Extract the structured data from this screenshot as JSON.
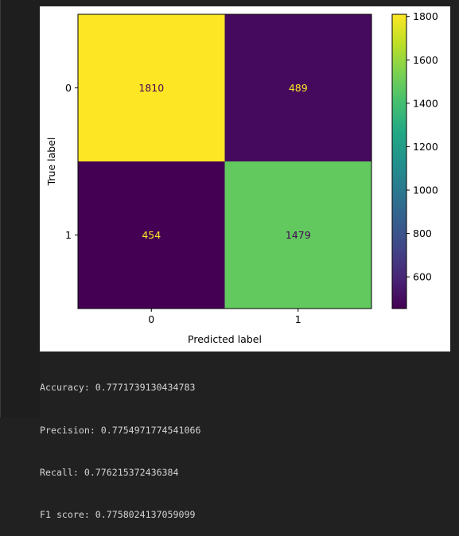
{
  "chart_data": {
    "type": "heatmap",
    "title": "",
    "xlabel": "Predicted label",
    "ylabel": "True label",
    "x_categories": [
      "0",
      "1"
    ],
    "y_categories": [
      "0",
      "1"
    ],
    "values": [
      [
        1810,
        489
      ],
      [
        454,
        1479
      ]
    ],
    "colormap": "viridis",
    "colorbar": {
      "ticks": [
        600,
        800,
        1000,
        1200,
        1400,
        1600,
        1800
      ],
      "range": [
        454,
        1810
      ]
    },
    "text_colors": {
      "on_dark": "#fde725",
      "on_light": "#440154"
    }
  },
  "output": {
    "lines": [
      "Accuracy: 0.7771739130434783",
      "Precision: 0.7754971774541066",
      "Recall: 0.776215372436384",
      "F1 score: 0.7758024137059099"
    ]
  },
  "colors": {
    "page_background": "#212121",
    "text": "#d4d4d4"
  }
}
